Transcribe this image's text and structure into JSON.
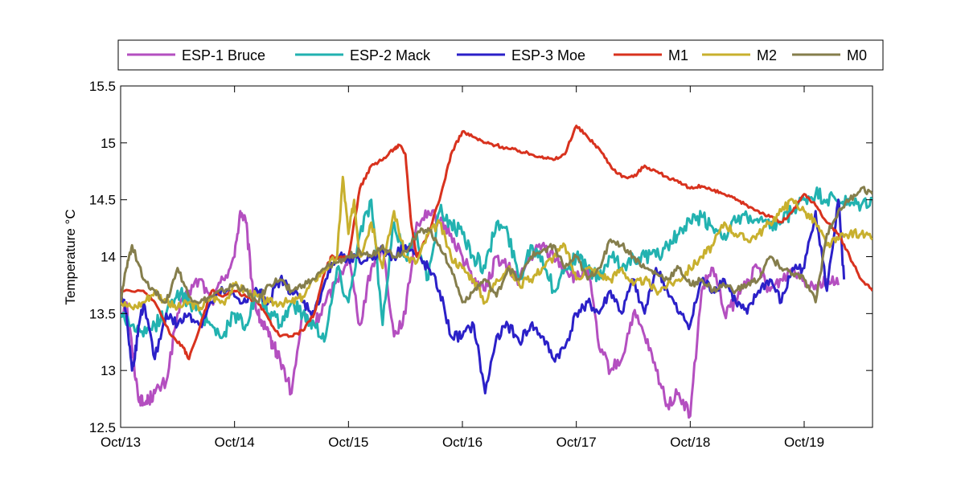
{
  "chart_data": {
    "type": "line",
    "title": "",
    "xlabel": "",
    "ylabel": "Temperature °C",
    "x_tick_labels": [
      "Oct/13",
      "Oct/14",
      "Oct/15",
      "Oct/16",
      "Oct/17",
      "Oct/18",
      "Oct/19"
    ],
    "y_tick_labels": [
      "12.5",
      "13",
      "13.5",
      "14",
      "14.5",
      "15",
      "15.5"
    ],
    "ylim": [
      12.5,
      15.5
    ],
    "xlim_days": [
      0,
      6.6
    ],
    "x_unit": "days since Oct/13 00:00",
    "grid": false,
    "legend_position": "top (outside, above plot)",
    "series": [
      {
        "name": "ESP-1 Bruce",
        "color": "#b44fc0",
        "x": [
          0,
          0.05,
          0.1,
          0.15,
          0.2,
          0.25,
          0.3,
          0.4,
          0.5,
          0.6,
          0.7,
          0.8,
          0.9,
          1.0,
          1.05,
          1.1,
          1.15,
          1.2,
          1.25,
          1.3,
          1.35,
          1.4,
          1.5,
          1.6,
          1.7,
          1.8,
          1.9,
          2.0,
          2.1,
          2.2,
          2.3,
          2.4,
          2.5,
          2.6,
          2.7,
          2.8,
          2.9,
          3.0,
          3.1,
          3.2,
          3.3,
          3.4,
          3.5,
          3.6,
          3.7,
          3.8,
          3.9,
          4.0,
          4.1,
          4.2,
          4.3,
          4.4,
          4.5,
          4.6,
          4.7,
          4.8,
          4.9,
          5.0,
          5.1,
          5.2,
          5.3,
          5.4,
          5.5,
          5.6,
          5.7,
          5.8,
          5.9,
          6.0,
          6.1,
          6.2,
          6.3
        ],
        "values": [
          13.5,
          13.6,
          13.2,
          12.8,
          12.7,
          12.75,
          12.8,
          12.9,
          13.5,
          13.7,
          13.8,
          13.6,
          13.8,
          14.0,
          14.4,
          14.3,
          13.8,
          13.5,
          13.4,
          13.3,
          13.2,
          13.1,
          12.8,
          13.5,
          13.4,
          13.6,
          13.8,
          14.0,
          13.4,
          13.9,
          14.1,
          13.3,
          13.5,
          14.3,
          14.4,
          14.3,
          14.2,
          14.0,
          13.8,
          13.7,
          14.0,
          13.9,
          13.8,
          14.0,
          14.1,
          14.0,
          13.9,
          13.8,
          13.9,
          13.2,
          13.0,
          13.1,
          13.5,
          13.3,
          13.0,
          12.7,
          12.8,
          12.6,
          13.7,
          13.9,
          13.5,
          13.6,
          13.8,
          13.9,
          13.7,
          13.8,
          13.9,
          13.8,
          13.75,
          13.8,
          13.75
        ]
      },
      {
        "name": "ESP-2 Mack",
        "color": "#22b2b0",
        "x": [
          0,
          0.1,
          0.2,
          0.3,
          0.4,
          0.5,
          0.6,
          0.7,
          0.8,
          0.9,
          1.0,
          1.1,
          1.2,
          1.3,
          1.4,
          1.5,
          1.6,
          1.7,
          1.8,
          1.9,
          2.0,
          2.1,
          2.2,
          2.3,
          2.4,
          2.5,
          2.6,
          2.7,
          2.8,
          2.9,
          3.0,
          3.1,
          3.2,
          3.3,
          3.4,
          3.5,
          3.6,
          3.7,
          3.8,
          3.9,
          4.0,
          4.1,
          4.2,
          4.3,
          4.4,
          4.5,
          4.6,
          4.7,
          4.8,
          4.9,
          5.0,
          5.1,
          5.2,
          5.3,
          5.4,
          5.5,
          5.6,
          5.7,
          5.8,
          5.9,
          6.0,
          6.1,
          6.2,
          6.3,
          6.4,
          6.5,
          6.6
        ],
        "values": [
          13.5,
          13.4,
          13.3,
          13.4,
          13.5,
          13.7,
          13.6,
          13.5,
          13.4,
          13.3,
          13.5,
          13.4,
          13.7,
          13.5,
          13.4,
          13.6,
          13.5,
          13.4,
          13.3,
          13.9,
          13.6,
          14.2,
          14.5,
          13.4,
          14.3,
          14.0,
          14.2,
          13.8,
          14.4,
          14.3,
          14.2,
          14.0,
          13.9,
          14.3,
          14.2,
          13.8,
          14.1,
          14.0,
          13.7,
          13.9,
          14.0,
          13.9,
          13.8,
          14.0,
          13.9,
          14.0,
          14.0,
          14.0,
          14.1,
          14.2,
          14.3,
          14.35,
          14.25,
          14.2,
          14.3,
          14.35,
          14.3,
          14.25,
          14.3,
          14.4,
          14.5,
          14.55,
          14.5,
          14.5,
          14.45,
          14.45,
          14.5
        ]
      },
      {
        "name": "ESP-3 Moe",
        "color": "#2b20c8",
        "x": [
          0,
          0.05,
          0.1,
          0.15,
          0.2,
          0.3,
          0.4,
          0.5,
          0.6,
          0.7,
          0.8,
          0.9,
          1.0,
          1.1,
          1.2,
          1.3,
          1.4,
          1.5,
          1.6,
          1.7,
          1.8,
          1.9,
          2.0,
          2.1,
          2.2,
          2.3,
          2.4,
          2.5,
          2.6,
          2.7,
          2.8,
          2.9,
          3.0,
          3.1,
          3.2,
          3.3,
          3.4,
          3.5,
          3.6,
          3.7,
          3.8,
          3.9,
          4.0,
          4.1,
          4.2,
          4.3,
          4.4,
          4.5,
          4.6,
          4.7,
          4.8,
          4.9,
          5.0,
          5.1,
          5.2,
          5.3,
          5.4,
          5.5,
          5.6,
          5.7,
          5.8,
          5.9,
          6.0,
          6.1,
          6.2,
          6.3,
          6.35
        ],
        "values": [
          13.7,
          13.5,
          13.0,
          13.3,
          13.6,
          13.1,
          13.5,
          13.4,
          13.5,
          13.4,
          13.6,
          13.7,
          13.65,
          13.6,
          13.7,
          13.6,
          13.8,
          13.7,
          13.6,
          13.5,
          13.8,
          14.0,
          14.0,
          13.95,
          14.0,
          14.05,
          14.0,
          14.1,
          14.0,
          13.9,
          13.7,
          13.3,
          13.3,
          13.4,
          12.8,
          13.3,
          13.4,
          13.25,
          13.4,
          13.3,
          13.1,
          13.2,
          13.5,
          13.6,
          13.5,
          13.7,
          13.5,
          13.8,
          13.5,
          13.9,
          13.7,
          13.5,
          13.4,
          13.8,
          13.7,
          13.8,
          13.6,
          13.5,
          13.7,
          13.8,
          13.6,
          13.9,
          13.9,
          14.4,
          13.7,
          14.5,
          13.8
        ]
      },
      {
        "name": "M1",
        "color": "#d8321e",
        "x": [
          0,
          0.2,
          0.3,
          0.45,
          0.55,
          0.6,
          0.7,
          0.8,
          0.9,
          1.0,
          1.1,
          1.2,
          1.3,
          1.4,
          1.5,
          1.6,
          1.7,
          1.8,
          1.85,
          1.9,
          2.0,
          2.1,
          2.2,
          2.3,
          2.4,
          2.45,
          2.5,
          2.55,
          2.6,
          2.7,
          2.8,
          2.9,
          3.0,
          3.1,
          3.2,
          3.3,
          3.4,
          3.5,
          3.6,
          3.7,
          3.8,
          3.9,
          4.0,
          4.1,
          4.2,
          4.3,
          4.4,
          4.5,
          4.6,
          4.7,
          4.8,
          4.9,
          5.0,
          5.1,
          5.2,
          5.3,
          5.4,
          5.5,
          5.6,
          5.7,
          5.8,
          5.9,
          6.0,
          6.1,
          6.2,
          6.3,
          6.4,
          6.5,
          6.6
        ],
        "values": [
          13.7,
          13.7,
          13.6,
          13.3,
          13.2,
          13.1,
          13.4,
          13.7,
          13.65,
          13.7,
          13.65,
          13.6,
          13.45,
          13.3,
          13.3,
          13.35,
          13.5,
          13.9,
          14.0,
          13.98,
          14.0,
          14.6,
          14.8,
          14.85,
          14.95,
          14.98,
          14.9,
          14.3,
          14.0,
          14.2,
          14.5,
          14.9,
          15.1,
          15.05,
          15.0,
          14.98,
          14.95,
          14.93,
          14.9,
          14.88,
          14.85,
          14.9,
          15.15,
          15.05,
          14.95,
          14.8,
          14.7,
          14.7,
          14.8,
          14.75,
          14.7,
          14.65,
          14.6,
          14.62,
          14.58,
          14.55,
          14.5,
          14.45,
          14.4,
          14.35,
          14.3,
          14.4,
          14.55,
          14.45,
          14.3,
          14.2,
          14.0,
          13.8,
          13.7
        ]
      },
      {
        "name": "M2",
        "color": "#c8b02e",
        "x": [
          0,
          0.1,
          0.2,
          0.3,
          0.4,
          0.5,
          0.6,
          0.7,
          0.8,
          0.9,
          1.0,
          1.1,
          1.2,
          1.3,
          1.4,
          1.5,
          1.6,
          1.7,
          1.8,
          1.9,
          1.95,
          2.0,
          2.05,
          2.1,
          2.2,
          2.3,
          2.4,
          2.5,
          2.6,
          2.7,
          2.8,
          2.9,
          3.0,
          3.1,
          3.2,
          3.3,
          3.4,
          3.5,
          3.6,
          3.7,
          3.8,
          3.9,
          4.0,
          4.1,
          4.2,
          4.3,
          4.4,
          4.5,
          4.6,
          4.7,
          4.8,
          4.9,
          5.0,
          5.1,
          5.2,
          5.3,
          5.4,
          5.5,
          5.6,
          5.7,
          5.8,
          5.9,
          6.0,
          6.1,
          6.2,
          6.3,
          6.4,
          6.5,
          6.6
        ],
        "values": [
          13.6,
          13.55,
          13.6,
          13.7,
          13.6,
          13.55,
          13.6,
          13.55,
          13.65,
          13.6,
          13.75,
          13.7,
          13.65,
          13.6,
          13.6,
          13.6,
          13.65,
          13.8,
          13.9,
          14.0,
          14.7,
          14.2,
          14.5,
          14.0,
          14.3,
          13.9,
          14.4,
          14.0,
          13.95,
          14.2,
          14.3,
          14.0,
          13.9,
          13.8,
          13.6,
          13.8,
          13.9,
          13.75,
          13.8,
          13.9,
          14.0,
          14.1,
          13.8,
          13.9,
          13.85,
          13.8,
          13.9,
          13.75,
          13.8,
          13.7,
          13.75,
          13.8,
          13.9,
          14.0,
          14.1,
          14.3,
          14.2,
          14.15,
          14.2,
          14.3,
          14.4,
          14.5,
          14.4,
          14.3,
          14.1,
          14.15,
          14.2,
          14.2,
          14.15
        ]
      },
      {
        "name": "M0",
        "color": "#857e4c",
        "x": [
          0,
          0.05,
          0.1,
          0.2,
          0.3,
          0.4,
          0.5,
          0.6,
          0.7,
          0.8,
          0.9,
          1.0,
          1.1,
          1.2,
          1.3,
          1.4,
          1.5,
          1.6,
          1.7,
          1.8,
          1.9,
          2.0,
          2.1,
          2.2,
          2.3,
          2.4,
          2.5,
          2.6,
          2.7,
          2.8,
          2.9,
          3.0,
          3.1,
          3.2,
          3.3,
          3.4,
          3.5,
          3.6,
          3.7,
          3.8,
          3.9,
          4.0,
          4.1,
          4.2,
          4.3,
          4.4,
          4.5,
          4.6,
          4.7,
          4.8,
          4.9,
          5.0,
          5.1,
          5.2,
          5.3,
          5.4,
          5.5,
          5.6,
          5.7,
          5.8,
          5.9,
          6.0,
          6.1,
          6.2,
          6.3,
          6.4,
          6.5,
          6.6
        ],
        "values": [
          13.6,
          13.9,
          14.1,
          13.8,
          13.7,
          13.6,
          13.9,
          13.65,
          13.6,
          13.65,
          13.7,
          13.75,
          13.7,
          13.6,
          13.75,
          13.8,
          13.7,
          13.75,
          13.8,
          13.9,
          13.95,
          14.0,
          14.05,
          14.0,
          14.1,
          14.0,
          14.05,
          14.2,
          14.25,
          14.1,
          13.9,
          13.6,
          13.7,
          13.8,
          13.65,
          13.9,
          13.8,
          14.0,
          14.05,
          14.1,
          13.9,
          14.0,
          13.8,
          13.9,
          14.15,
          14.1,
          14.0,
          13.9,
          13.85,
          13.8,
          13.9,
          13.75,
          13.8,
          13.7,
          13.75,
          13.7,
          13.75,
          13.8,
          14.0,
          13.9,
          13.85,
          13.8,
          13.6,
          14.2,
          14.4,
          14.5,
          14.6,
          14.55
        ]
      }
    ]
  }
}
